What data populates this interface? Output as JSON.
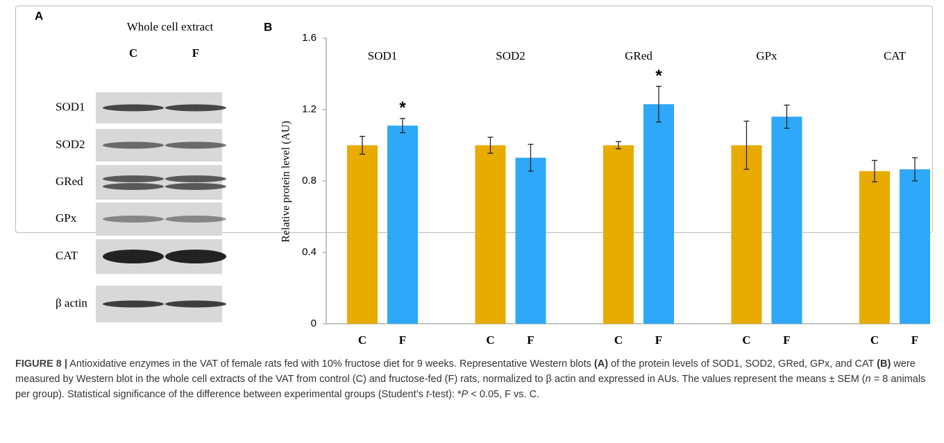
{
  "panel_a": {
    "label": "A",
    "title": "Whole cell extract",
    "columns": [
      "C",
      "F"
    ],
    "rows": [
      "SOD1",
      "SOD2",
      "GRed",
      "GPx",
      "CAT",
      "β actin"
    ]
  },
  "chart_data": {
    "type": "bar",
    "panel_label": "B",
    "ylabel": "Relative protein level (AU)",
    "categories": [
      "SOD1",
      "SOD2",
      "GRed",
      "GPx",
      "CAT"
    ],
    "series": [
      {
        "name": "C",
        "color": "#e8ab00",
        "values": [
          1.0,
          1.0,
          1.0,
          1.0,
          0.855
        ],
        "errors": [
          0.05,
          0.045,
          0.02,
          0.135,
          0.06
        ]
      },
      {
        "name": "F",
        "color": "#2ea8f8",
        "values": [
          1.11,
          0.93,
          1.23,
          1.16,
          0.865
        ],
        "errors": [
          0.04,
          0.075,
          0.1,
          0.065,
          0.065
        ]
      }
    ],
    "annotations": [
      {
        "text": "*",
        "category": "SOD1",
        "series": "F"
      },
      {
        "text": "*",
        "category": "GRed",
        "series": "F"
      }
    ],
    "ylim": [
      0,
      1.6
    ],
    "yticks": [
      0,
      0.4,
      0.8,
      1.2,
      1.6
    ]
  },
  "caption": [
    {
      "text": "FIGURE 8 |",
      "style": "bold"
    },
    {
      "text": " Antioxidative enzymes in the VAT of female rats fed with 10% fructose diet for 9 weeks. Representative Western blots ",
      "style": "normal"
    },
    {
      "text": "(A)",
      "style": "bold"
    },
    {
      "text": " of the protein levels of SOD1, SOD2, GRed, GPx, and CAT ",
      "style": "normal"
    },
    {
      "text": "(B)",
      "style": "bold"
    },
    {
      "text": " were measured by Western blot in the whole cell extracts of the VAT from control (C) and fructose-fed (F) rats, normalized to β actin and expressed in AUs. The values represent the means ± SEM (",
      "style": "normal"
    },
    {
      "text": "n",
      "style": "italic"
    },
    {
      "text": " = 8 animals per group). Statistical significance of the difference between experimental groups (Student’s ",
      "style": "normal"
    },
    {
      "text": "t",
      "style": "italic"
    },
    {
      "text": "-test): *",
      "style": "normal"
    },
    {
      "text": "P",
      "style": "italic"
    },
    {
      "text": " < 0.05, F vs. C.",
      "style": "normal"
    }
  ]
}
